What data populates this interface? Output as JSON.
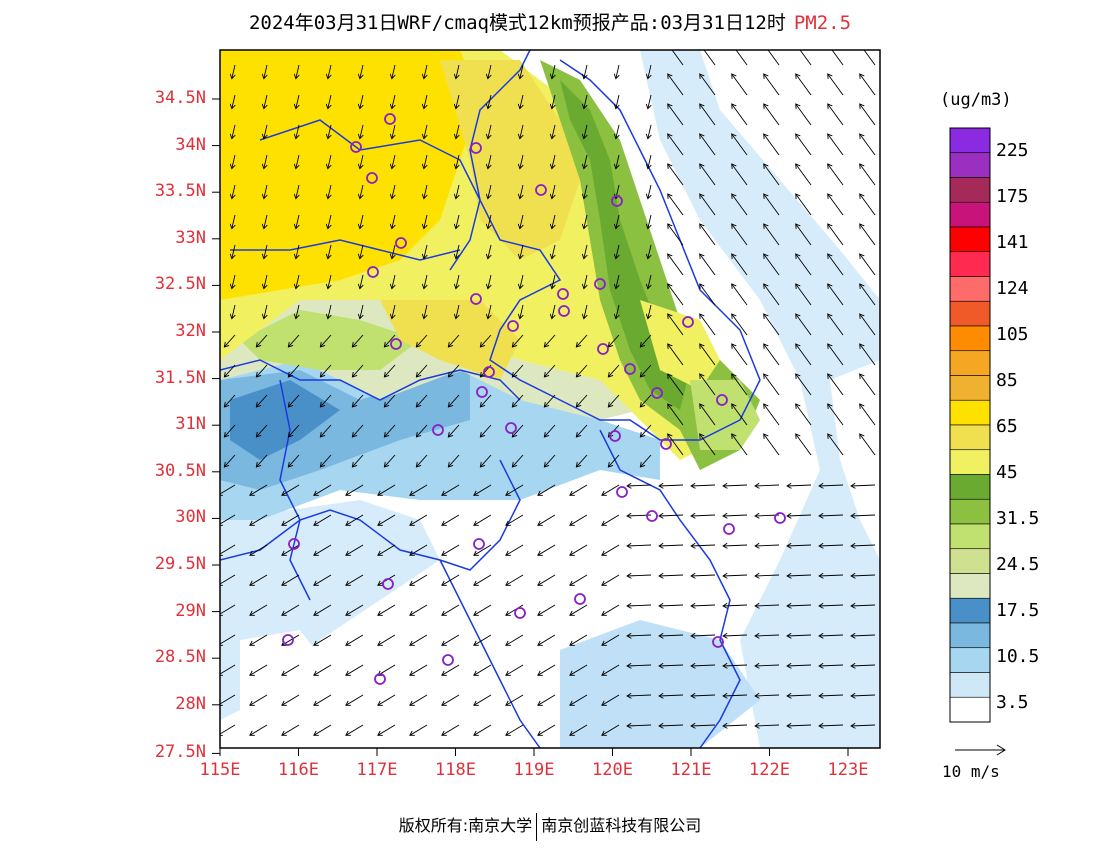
{
  "title": {
    "main": "2024年03月31日WRF/cmaq模式12km预报产品:03月31日12时",
    "pollutant": "PM2.5"
  },
  "units": "(ug/m3)",
  "wind_reference": "10 m/s",
  "footer": {
    "left": "版权所有:南京大学",
    "right": "南京创蓝科技有限公司"
  },
  "lat_labels": [
    "34.5N",
    "34N",
    "33.5N",
    "33N",
    "32.5N",
    "32N",
    "31.5N",
    "31N",
    "30.5N",
    "30N",
    "29.5N",
    "29N",
    "28.5N",
    "28N",
    "27.5N"
  ],
  "lon_labels": [
    "115E",
    "116E",
    "117E",
    "118E",
    "119E",
    "120E",
    "121E",
    "122E",
    "123E"
  ],
  "legend_labels": [
    "225",
    "175",
    "141",
    "124",
    "105",
    "85",
    "65",
    "45",
    "31.5",
    "24.5",
    "17.5",
    "10.5",
    "3.5"
  ],
  "legend_colors": [
    "#8a2be2",
    "#9b30c0",
    "#a52a5a",
    "#c8147a",
    "#ff0000",
    "#ff2a50",
    "#ff6a6a",
    "#f05a28",
    "#ff8c00",
    "#f5a623",
    "#f0b030",
    "#ffe100",
    "#f0e050",
    "#f0f060",
    "#6aaa30",
    "#8cc040",
    "#c0e070",
    "#cfe090",
    "#dde8c0",
    "#4a90c8",
    "#7ab8e0",
    "#a6d6f0",
    "#cfe8f8",
    "#ffffff"
  ],
  "colors": {
    "accent_red": "#e0303a",
    "boundary_blue": "#1a3ae0",
    "marker_purple": "#8a1fc8"
  },
  "icons": [
    "city-marker-icon",
    "wind-arrow-icon"
  ]
}
